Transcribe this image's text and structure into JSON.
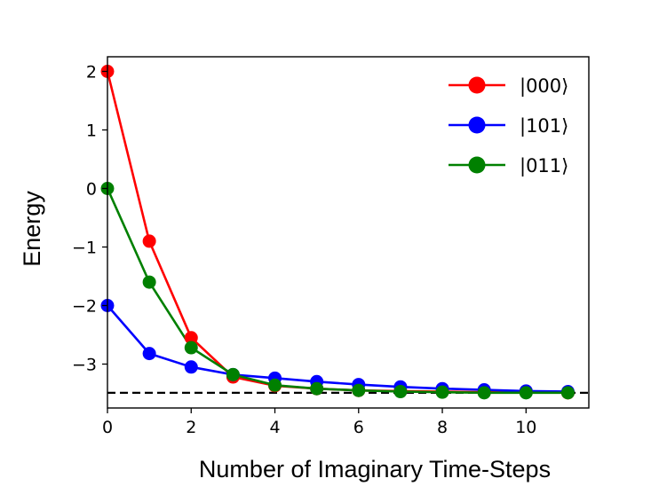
{
  "chart_data": {
    "type": "line",
    "title": "",
    "xlabel": "Number of Imaginary Time-Steps",
    "ylabel": "Energy",
    "xlim": [
      0,
      11.5
    ],
    "ylim": [
      -3.75,
      2.25
    ],
    "xticks": [
      0,
      2,
      4,
      6,
      8,
      10
    ],
    "yticks": [
      -3,
      -2,
      -1,
      0,
      1,
      2
    ],
    "xtick_labels": [
      "0",
      "2",
      "4",
      "6",
      "8",
      "10"
    ],
    "ytick_labels": [
      "−3",
      "−2",
      "−1",
      "0",
      "1",
      "2"
    ],
    "grid": false,
    "legend_position": "top-right",
    "x": [
      0,
      1,
      2,
      3,
      4,
      5,
      6,
      7,
      8,
      9,
      10,
      11
    ],
    "series": [
      {
        "name": "|000⟩",
        "color": "#ff0000",
        "values": [
          2.0,
          -0.9,
          -2.55,
          -3.22,
          -3.37,
          -3.42,
          -3.45,
          -3.46,
          -3.47,
          -3.48,
          -3.48,
          -3.49
        ]
      },
      {
        "name": "|101⟩",
        "color": "#0000ff",
        "values": [
          -2.0,
          -2.82,
          -3.05,
          -3.18,
          -3.24,
          -3.3,
          -3.35,
          -3.39,
          -3.42,
          -3.44,
          -3.46,
          -3.47
        ]
      },
      {
        "name": "|011⟩",
        "color": "#008000",
        "values": [
          0.0,
          -1.6,
          -2.72,
          -3.18,
          -3.36,
          -3.42,
          -3.45,
          -3.47,
          -3.48,
          -3.49,
          -3.49,
          -3.49
        ]
      }
    ],
    "reference_line": {
      "y": -3.49,
      "style": "dashed",
      "color": "#000000"
    }
  }
}
